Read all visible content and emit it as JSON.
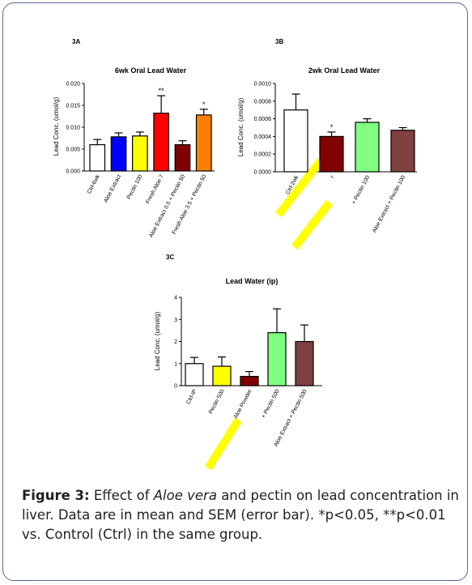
{
  "figure": {
    "caption": {
      "label": "Figure 3:",
      "text_before": " Effect of ",
      "species": "Aloe vera",
      "text_after": " and pectin on lead concentration in liver. Data are in mean and SEM (error bar). *p<0.05, **p<0.01 vs. Control (Ctrl) in the same group."
    }
  },
  "chart_data": [
    {
      "panel_label": "3A",
      "type": "bar",
      "title": "6wk Oral Lead Water",
      "ylabel": "Lead Conc. (umol/g)",
      "ylim": [
        0,
        0.02
      ],
      "yticks": [
        "0.000",
        "0.005",
        "0.010",
        "0.015",
        "0.020"
      ],
      "grid": false,
      "categories": [
        "Ctrl-6wk",
        "Aloe Extract",
        "Pectin 100",
        "Fresh Aloe 7",
        "Aloe Extract 0.5 + Pectin 50",
        "Fresh Aloe 3.5 + Pectin 50"
      ],
      "values": [
        0.006,
        0.0078,
        0.008,
        0.0132,
        0.006,
        0.0128
      ],
      "errors": [
        0.0012,
        0.0009,
        0.0009,
        0.004,
        0.0009,
        0.0013
      ],
      "colors": [
        "#ffffff",
        "#0000ff",
        "#ffff00",
        "#ff0000",
        "#800000",
        "#ff8000"
      ],
      "significance": [
        "",
        "",
        "",
        "**",
        "",
        "*"
      ]
    },
    {
      "panel_label": "3B",
      "type": "bar",
      "title": "2wk Oral Lead Water",
      "ylabel": "Lead Conc. (umol/g)",
      "ylim": [
        0,
        0.001
      ],
      "yticks": [
        "0.0000",
        "0.0002",
        "0.0004",
        "0.0006",
        "0.0008",
        "0.0010"
      ],
      "grid": false,
      "categories": [
        "Ctrl-2wk",
        "r",
        "+ Pectin 100",
        "Aloe Extract + Pectin 100"
      ],
      "values": [
        0.0007,
        0.0004,
        0.00056,
        0.00047
      ],
      "errors": [
        0.00018,
        5e-05,
        4e-05,
        3e-05
      ],
      "colors": [
        "#ffffff",
        "#800000",
        "#80ff80",
        "#804040"
      ],
      "significance": [
        "",
        "*",
        "",
        ""
      ]
    },
    {
      "panel_label": "3C",
      "type": "bar",
      "title": "Lead Water (ip)",
      "ylabel": "Lead Conc. (umol/g)",
      "ylim": [
        0,
        4
      ],
      "yticks": [
        "0",
        "1",
        "2",
        "3",
        "4"
      ],
      "grid": false,
      "categories": [
        "Ctrl-IP",
        "Pectin 500",
        "Aloe Powder",
        "+ Pectin 500",
        "Aloe Extract + Pectin 500"
      ],
      "values": [
        1.0,
        0.88,
        0.42,
        2.4,
        2.0
      ],
      "errors": [
        0.28,
        0.42,
        0.22,
        1.08,
        0.75
      ],
      "colors": [
        "#ffffff",
        "#ffff00",
        "#800000",
        "#80ff80",
        "#804040"
      ],
      "significance": [
        "",
        "",
        "",
        "",
        ""
      ]
    }
  ]
}
